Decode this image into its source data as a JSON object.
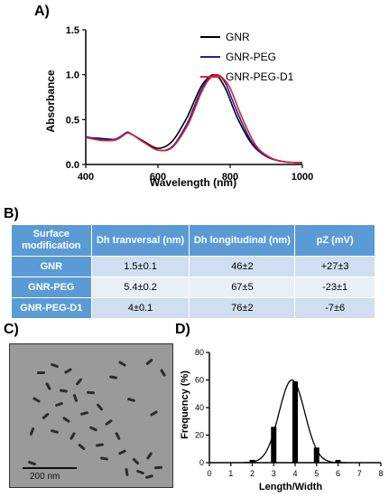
{
  "panels": {
    "a": "A)",
    "b": "B)",
    "c": "C)",
    "d": "D)"
  },
  "chart_data": [
    {
      "type": "line",
      "xlabel": "Wavelength (nm)",
      "ylabel": "Absorbance",
      "xlim": [
        400,
        1000
      ],
      "ylim": [
        0,
        1.5
      ],
      "xticks": [
        "400",
        "600",
        "800",
        "1000"
      ],
      "yticks": [
        "0.0",
        "0.5",
        "1.0",
        "1.5"
      ],
      "legend_position": "top-right",
      "series": [
        {
          "name": "GNR",
          "color": "#000000",
          "x": [
            400,
            440,
            480,
            500,
            515,
            530,
            560,
            600,
            640,
            680,
            700,
            720,
            740,
            755,
            770,
            790,
            820,
            860,
            900,
            950,
            1000
          ],
          "y": [
            0.3,
            0.29,
            0.28,
            0.32,
            0.35,
            0.33,
            0.26,
            0.18,
            0.26,
            0.52,
            0.7,
            0.87,
            0.97,
            1.0,
            0.96,
            0.82,
            0.52,
            0.23,
            0.09,
            0.03,
            0.02
          ]
        },
        {
          "name": "GNR-PEG",
          "color": "#1f1fb4",
          "x": [
            400,
            440,
            480,
            500,
            515,
            530,
            560,
            600,
            640,
            680,
            700,
            720,
            740,
            760,
            775,
            790,
            820,
            860,
            900,
            950,
            1000
          ],
          "y": [
            0.31,
            0.28,
            0.28,
            0.32,
            0.36,
            0.33,
            0.25,
            0.16,
            0.2,
            0.45,
            0.64,
            0.83,
            0.96,
            1.0,
            0.97,
            0.88,
            0.58,
            0.25,
            0.09,
            0.03,
            0.02
          ]
        },
        {
          "name": "GNR-PEG-D1",
          "color": "#e0202a",
          "x": [
            400,
            440,
            480,
            500,
            515,
            530,
            560,
            600,
            640,
            680,
            700,
            720,
            740,
            762,
            780,
            800,
            830,
            870,
            910,
            950,
            1000
          ],
          "y": [
            0.3,
            0.27,
            0.27,
            0.31,
            0.35,
            0.33,
            0.25,
            0.16,
            0.19,
            0.42,
            0.6,
            0.8,
            0.94,
            1.0,
            0.96,
            0.85,
            0.55,
            0.22,
            0.08,
            0.03,
            0.02
          ]
        }
      ]
    },
    {
      "type": "bar",
      "xlabel": "Length/Width",
      "ylabel": "Frequency (%)",
      "xlim": [
        0,
        8
      ],
      "ylim": [
        0,
        80
      ],
      "xticks": [
        "0",
        "1",
        "2",
        "3",
        "4",
        "5",
        "6",
        "7",
        "8"
      ],
      "yticks": [
        "0",
        "20",
        "40",
        "60",
        "80"
      ],
      "x": [
        2,
        3,
        4,
        5,
        6
      ],
      "values": [
        2,
        26,
        59,
        11,
        2
      ],
      "fit_curve": {
        "type": "gaussian",
        "mean": 3.85,
        "sd": 0.6,
        "peak": 60
      }
    }
  ],
  "table": {
    "headers": [
      "Surface modification",
      "Dh tranversal (nm)",
      "Dh longitudinal (nm)",
      "pZ (mV)"
    ],
    "rows": [
      [
        "GNR",
        "1.5±0.1",
        "46±2",
        "+27±3"
      ],
      [
        "GNR-PEG",
        "5.4±0.2",
        "67±5",
        "-23±1"
      ],
      [
        "GNR-PEG-D1",
        "4±0.1",
        "76±2",
        "-7±6"
      ]
    ]
  },
  "tem": {
    "scale_bar": "200 nm"
  }
}
